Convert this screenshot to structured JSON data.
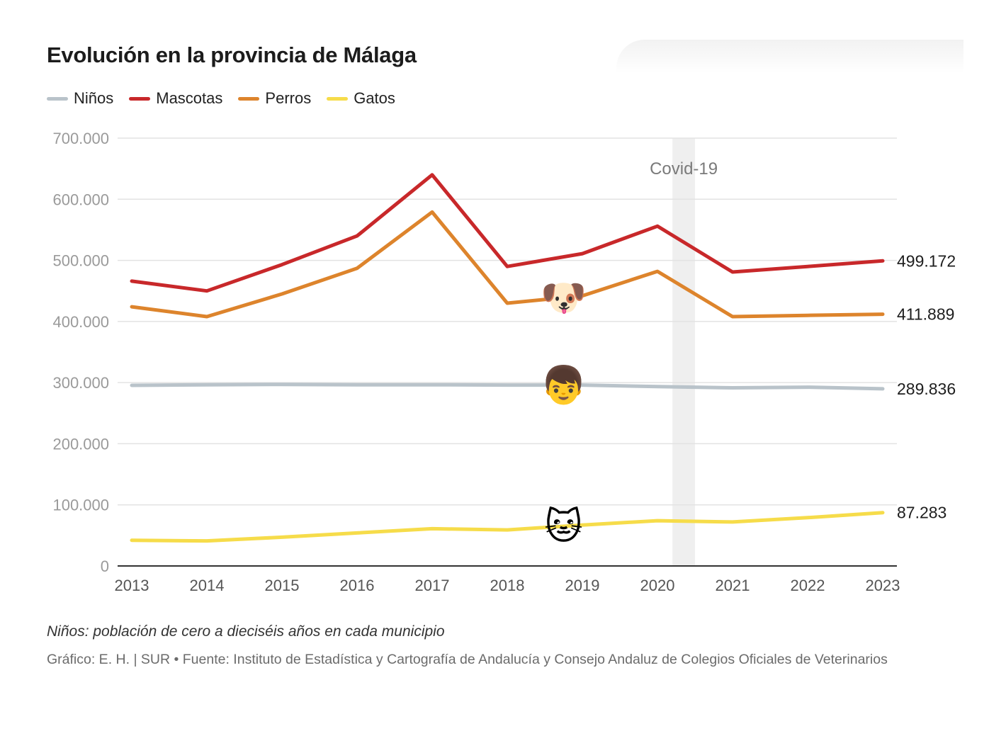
{
  "title": "Evolución en la provincia de Málaga",
  "legend": [
    {
      "label": "Niños",
      "color": "#b9c3ca"
    },
    {
      "label": "Mascotas",
      "color": "#c8282a"
    },
    {
      "label": "Perros",
      "color": "#dd842c"
    },
    {
      "label": "Gatos",
      "color": "#f6dc4a"
    }
  ],
  "chart_data": {
    "type": "line",
    "title": "Evolución en la provincia de Málaga",
    "x": [
      "2013",
      "2014",
      "2015",
      "2016",
      "2017",
      "2018",
      "2019",
      "2020",
      "2021",
      "2022",
      "2023"
    ],
    "ylim": [
      0,
      700000
    ],
    "yticks": [
      "0",
      "100.000",
      "200.000",
      "300.000",
      "400.000",
      "500.000",
      "600.000",
      "700.000"
    ],
    "ytick_values": [
      0,
      100000,
      200000,
      300000,
      400000,
      500000,
      600000,
      700000
    ],
    "grid": true,
    "series": [
      {
        "name": "Niños",
        "color": "#b9c3ca",
        "values": [
          295500,
          296500,
          297000,
          296500,
          296500,
          296000,
          296000,
          293500,
          291500,
          292500,
          289836
        ],
        "end_label": "289.836"
      },
      {
        "name": "Mascotas",
        "color": "#c8282a",
        "values": [
          466000,
          450000,
          493000,
          540000,
          640000,
          490000,
          511000,
          556000,
          481000,
          490000,
          499172
        ],
        "end_label": "499.172"
      },
      {
        "name": "Perros",
        "color": "#dd842c",
        "values": [
          424000,
          408000,
          445000,
          487000,
          579000,
          430000,
          442000,
          482000,
          408000,
          410000,
          411889
        ],
        "end_label": "411.889"
      },
      {
        "name": "Gatos",
        "color": "#f6dc4a",
        "values": [
          42000,
          41000,
          47000,
          54000,
          61000,
          59000,
          67000,
          74000,
          72000,
          79000,
          87283
        ],
        "end_label": "87.283"
      }
    ],
    "annotation": {
      "label": "Covid-19",
      "x_start": 2020.2,
      "x_end": 2020.5
    },
    "emoji_markers": [
      {
        "emoji": "🐶",
        "series": "Perros",
        "x": 2018.75
      },
      {
        "emoji": "👦",
        "series": "Niños",
        "x": 2018.75
      },
      {
        "emoji": "🐱",
        "series": "Gatos",
        "x": 2018.75
      }
    ]
  },
  "footnote": "Niños: población de cero a dieciséis años en cada municipio",
  "source": "Gráfico: E. H. | SUR • Fuente: Instituto de Estadística y Cartografía de Andalucía y Consejo Andaluz de Colegios Oficiales de Veterinarios"
}
